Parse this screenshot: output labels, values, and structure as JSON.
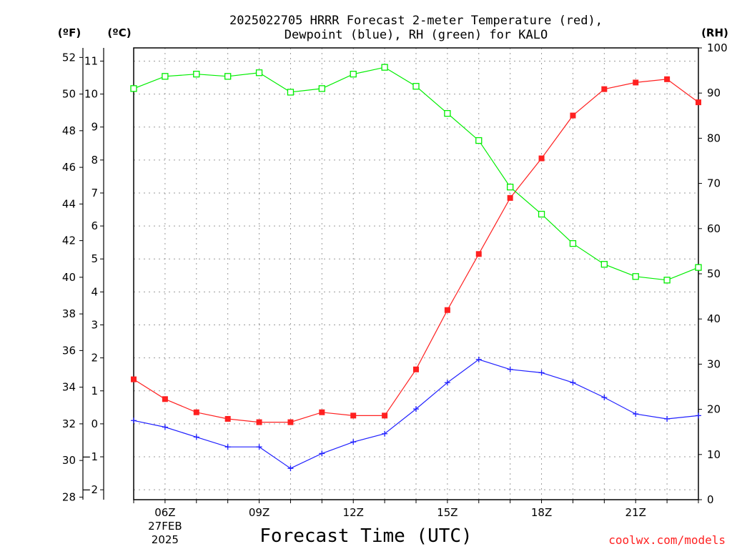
{
  "chart_data": {
    "type": "line",
    "title_line1": "2025022705 HRRR Forecast 2-meter Temperature (red),",
    "title_line2": "Dewpoint (blue), RH (green) for KALO",
    "left_unit_f": "(ºF)",
    "left_unit_c": "(ºC)",
    "right_unit": "(RH)",
    "xlabel": "Forecast Time (UTC)",
    "credit": "coolwx.com/models",
    "x_hours": [
      5,
      6,
      7,
      8,
      9,
      10,
      11,
      12,
      13,
      14,
      15,
      16,
      17,
      18,
      19,
      20,
      21,
      22,
      23
    ],
    "x_ticks": [
      {
        "hour": 6,
        "label": "06Z",
        "sub1": "27FEB",
        "sub2": "2025"
      },
      {
        "hour": 9,
        "label": "09Z"
      },
      {
        "hour": 12,
        "label": "12Z"
      },
      {
        "hour": 15,
        "label": "15Z"
      },
      {
        "hour": 18,
        "label": "18Z"
      },
      {
        "hour": 21,
        "label": "21Z"
      }
    ],
    "celsius_range": [
      -2.3,
      11.4
    ],
    "celsius_ticks": [
      -2,
      -1,
      0,
      1,
      2,
      3,
      4,
      5,
      6,
      7,
      8,
      9,
      10,
      11
    ],
    "fahrenheit_ticks": [
      28,
      30,
      32,
      34,
      36,
      38,
      40,
      42,
      44,
      46,
      48,
      50,
      52
    ],
    "rh_range": [
      0,
      100
    ],
    "rh_ticks": [
      0,
      10,
      20,
      30,
      40,
      50,
      60,
      70,
      80,
      90,
      100
    ],
    "grid": true,
    "series": [
      {
        "name": "Temperature",
        "color": "#ff2020",
        "marker": "filled-square",
        "axis": "celsius",
        "values": [
          1.35,
          0.75,
          0.35,
          0.15,
          0.05,
          0.05,
          0.35,
          0.25,
          0.25,
          1.65,
          3.45,
          5.15,
          6.85,
          8.05,
          9.35,
          10.15,
          10.35,
          10.45,
          9.75
        ]
      },
      {
        "name": "Dewpoint",
        "color": "#2020ff",
        "marker": "plus",
        "axis": "celsius",
        "values": [
          0.1,
          -0.1,
          -0.4,
          -0.7,
          -0.7,
          -1.35,
          -0.9,
          -0.55,
          -0.3,
          0.45,
          1.25,
          1.95,
          1.65,
          1.55,
          1.25,
          0.8,
          0.3,
          0.15,
          0.25
        ]
      },
      {
        "name": "RH",
        "color": "#00ee00",
        "marker": "open-square",
        "axis": "rh",
        "values": [
          91,
          93.7,
          94.2,
          93.7,
          94.5,
          90.2,
          91,
          94.2,
          95.7,
          91.5,
          85.5,
          79.5,
          69.2,
          63.2,
          56.7,
          52.1,
          49.4,
          48.6,
          51.4
        ]
      }
    ]
  }
}
